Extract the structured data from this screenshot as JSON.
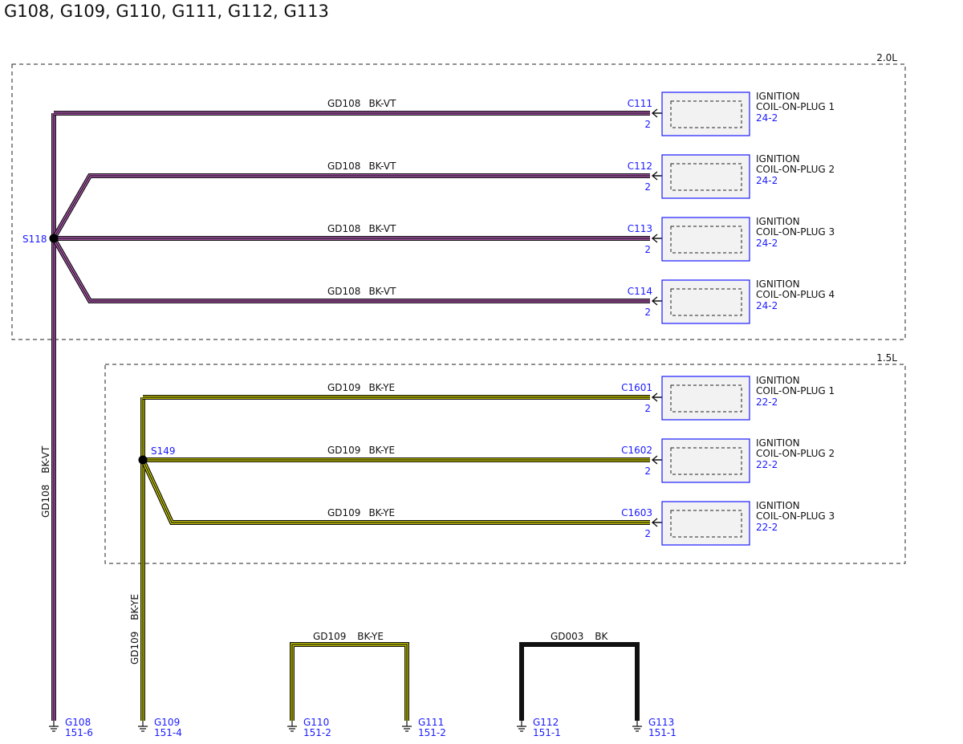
{
  "title": "G108, G109, G110, G111, G112, G113",
  "colors": {
    "bk_vt_stripe": "#cc66cc",
    "bk_ye_stripe": "#e8e800",
    "wire_black": "#111111",
    "link_blue": "#1a1aff",
    "component_fill": "#f2f2f2"
  },
  "groups": [
    {
      "label": "2.0L",
      "splice": "S118",
      "trunk": {
        "circuit": "GD108",
        "color": "BK-VT"
      },
      "ground": {
        "id": "G108",
        "ref": "151-6"
      },
      "branches": [
        {
          "circuit": "GD108",
          "color": "BK-VT",
          "connector": "C111",
          "pin": "2",
          "name_line1": "IGNITION",
          "name_line2": "COIL-ON-PLUG 1",
          "ref": "24-2"
        },
        {
          "circuit": "GD108",
          "color": "BK-VT",
          "connector": "C112",
          "pin": "2",
          "name_line1": "IGNITION",
          "name_line2": "COIL-ON-PLUG 2",
          "ref": "24-2"
        },
        {
          "circuit": "GD108",
          "color": "BK-VT",
          "connector": "C113",
          "pin": "2",
          "name_line1": "IGNITION",
          "name_line2": "COIL-ON-PLUG 3",
          "ref": "24-2"
        },
        {
          "circuit": "GD108",
          "color": "BK-VT",
          "connector": "C114",
          "pin": "2",
          "name_line1": "IGNITION",
          "name_line2": "COIL-ON-PLUG 4",
          "ref": "24-2"
        }
      ]
    },
    {
      "label": "1.5L",
      "splice": "S149",
      "trunk": {
        "circuit": "GD109",
        "color": "BK-YE"
      },
      "ground": {
        "id": "G109",
        "ref": "151-4"
      },
      "branches": [
        {
          "circuit": "GD109",
          "color": "BK-YE",
          "connector": "C1601",
          "pin": "2",
          "name_line1": "IGNITION",
          "name_line2": "COIL-ON-PLUG 1",
          "ref": "22-2"
        },
        {
          "circuit": "GD109",
          "color": "BK-YE",
          "connector": "C1602",
          "pin": "2",
          "name_line1": "IGNITION",
          "name_line2": "COIL-ON-PLUG 2",
          "ref": "22-2"
        },
        {
          "circuit": "GD109",
          "color": "BK-YE",
          "connector": "C1603",
          "pin": "2",
          "name_line1": "IGNITION",
          "name_line2": "COIL-ON-PLUG 3",
          "ref": "22-2"
        }
      ]
    }
  ],
  "ground_links": [
    {
      "circuit": "GD109",
      "color": "BK-YE",
      "left": {
        "id": "G110",
        "ref": "151-2"
      },
      "right": {
        "id": "G111",
        "ref": "151-2"
      }
    },
    {
      "circuit": "GD003",
      "color": "BK",
      "left": {
        "id": "G112",
        "ref": "151-1"
      },
      "right": {
        "id": "G113",
        "ref": "151-1"
      }
    }
  ]
}
